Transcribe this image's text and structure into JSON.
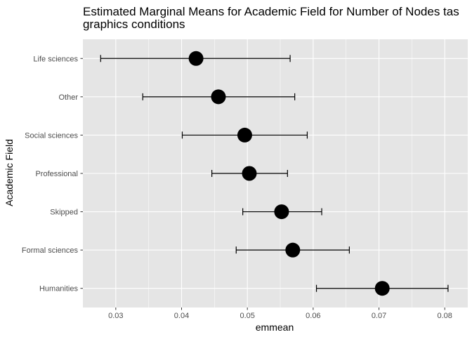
{
  "chart_data": {
    "type": "errorbar-dot",
    "title": "Estimated Marginal Means for Academic Field for Number of Nodes tas",
    "subtitle": "graphics conditions",
    "xlabel": "emmean",
    "ylabel": "Academic Field",
    "xlim": [
      0.025,
      0.0835
    ],
    "x_ticks": [
      0.03,
      0.04,
      0.05,
      0.06,
      0.07,
      0.08
    ],
    "x_tick_labels": [
      "0.03",
      "0.04",
      "0.05",
      "0.06",
      "0.07",
      "0.08"
    ],
    "grid": true,
    "categories": [
      "Life sciences",
      "Other",
      "Social sciences",
      "Professional",
      "Skipped",
      "Formal sciences",
      "Humanities"
    ],
    "points": [
      {
        "category": "Life sciences",
        "emmean": 0.0422,
        "lower": 0.0277,
        "upper": 0.0565
      },
      {
        "category": "Other",
        "emmean": 0.0456,
        "lower": 0.0341,
        "upper": 0.0572
      },
      {
        "category": "Social sciences",
        "emmean": 0.0496,
        "lower": 0.0401,
        "upper": 0.0591
      },
      {
        "category": "Professional",
        "emmean": 0.0503,
        "lower": 0.0446,
        "upper": 0.0561
      },
      {
        "category": "Skipped",
        "emmean": 0.0552,
        "lower": 0.0493,
        "upper": 0.0613
      },
      {
        "category": "Formal sciences",
        "emmean": 0.0569,
        "lower": 0.0483,
        "upper": 0.0655
      },
      {
        "category": "Humanities",
        "emmean": 0.0705,
        "lower": 0.0605,
        "upper": 0.0805
      }
    ],
    "colors": {
      "panel_background": "#e5e5e5",
      "grid_major": "#ffffff",
      "point": "#000000",
      "errorbar": "#000000",
      "tick_label": "#4d4d4d"
    }
  }
}
